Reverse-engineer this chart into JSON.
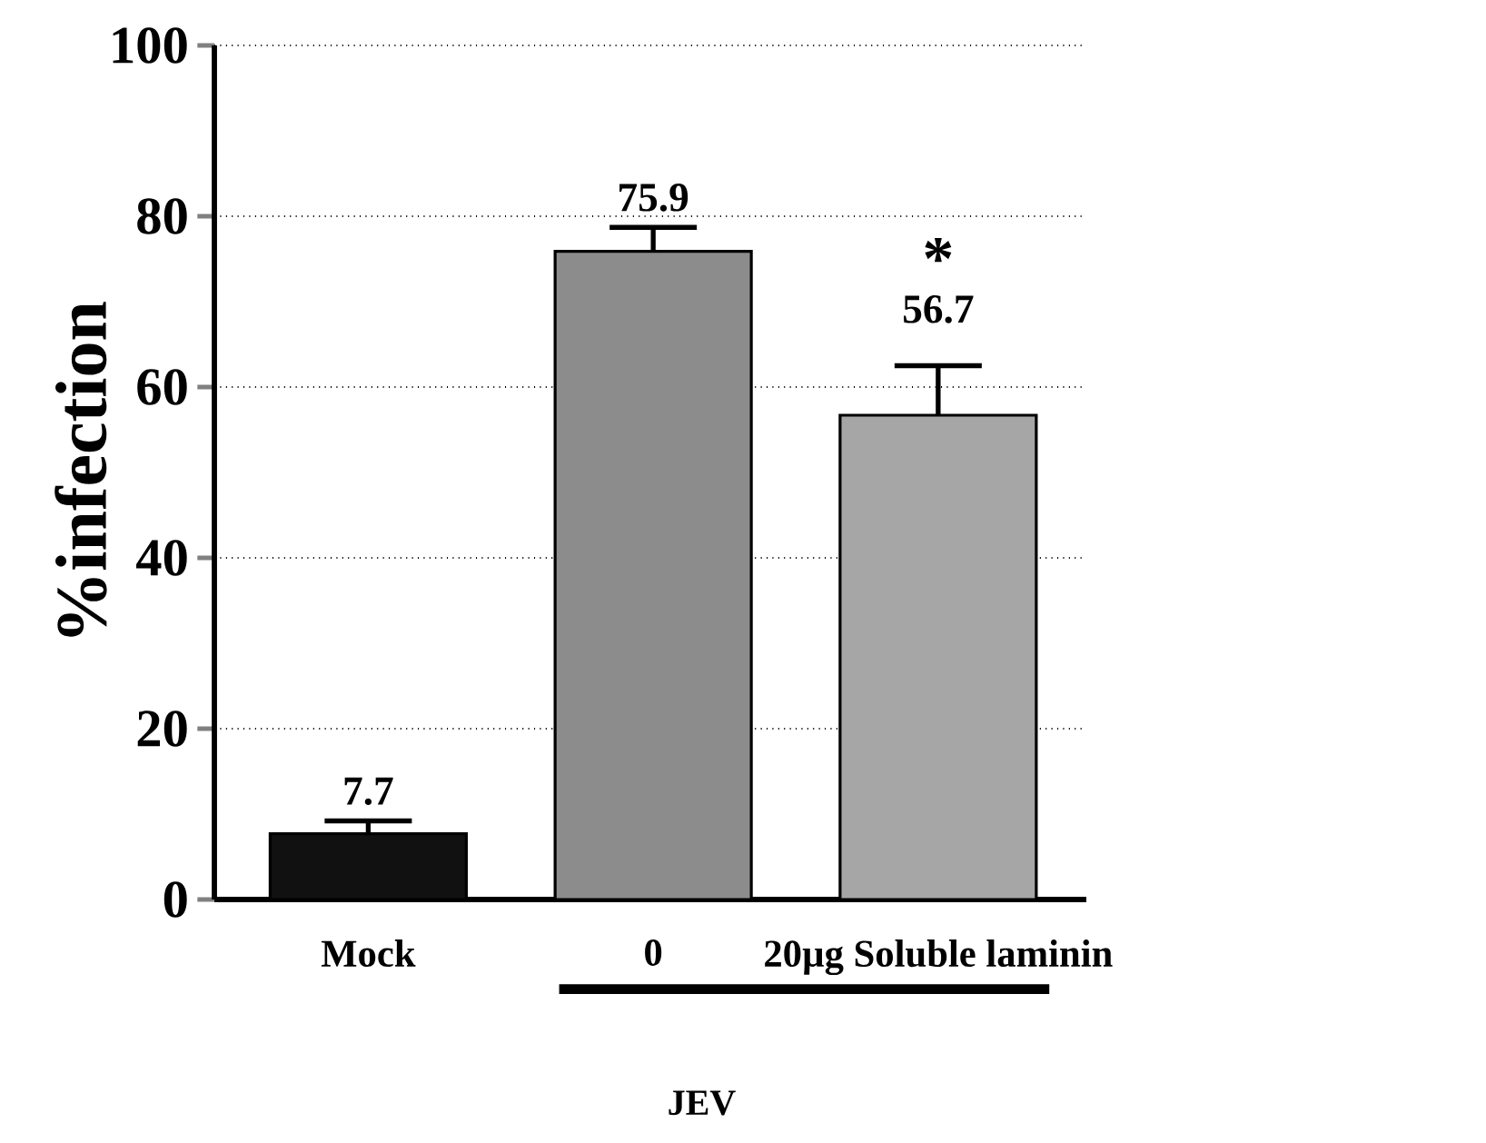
{
  "chart_data": {
    "type": "bar",
    "ylabel": "%infection",
    "categories": [
      "Mock",
      "0",
      "20µg Soluble laminin"
    ],
    "values": [
      7.7,
      75.9,
      56.7
    ],
    "colors": [
      "#111111",
      "#8c8c8c",
      "#a6a6a6"
    ],
    "errors": [
      [
        7.7,
        9.2
      ],
      [
        75.9,
        78.7
      ],
      [
        56.7,
        62.5
      ]
    ],
    "data_labels": true,
    "ylim": [
      0,
      100
    ],
    "yticks": [
      0,
      20,
      40,
      60,
      80,
      100
    ],
    "grid": "y",
    "annotations": [
      {
        "text": "*",
        "x": "20µg Soluble laminin",
        "y": 62.5
      },
      "JEV"
    ]
  }
}
